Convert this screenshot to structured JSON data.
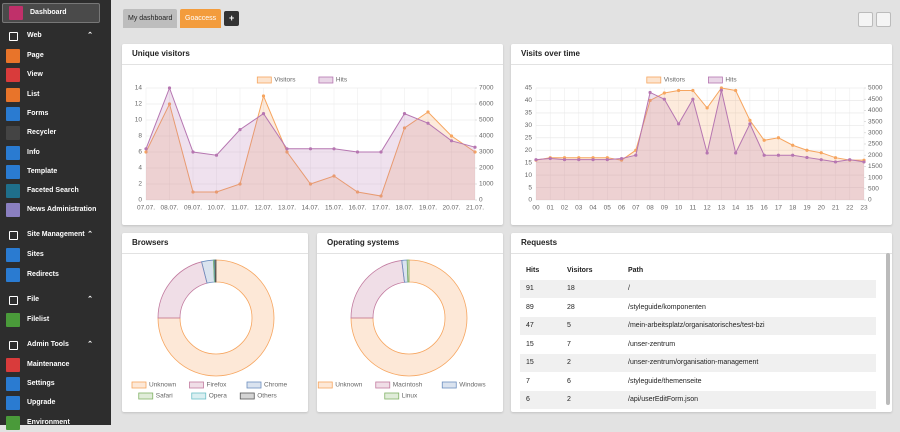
{
  "sidebar": {
    "dashboard": "Dashboard",
    "groups": [
      {
        "label": "Web",
        "items": [
          "Page",
          "View",
          "List",
          "Forms",
          "Recycler",
          "Info",
          "Template",
          "Faceted Search",
          "News Administration"
        ]
      },
      {
        "label": "Site Management",
        "items": [
          "Sites",
          "Redirects"
        ]
      },
      {
        "label": "File",
        "items": [
          "Filelist"
        ]
      },
      {
        "label": "Admin Tools",
        "items": [
          "Maintenance",
          "Settings",
          "Upgrade",
          "Environment"
        ]
      }
    ]
  },
  "tabs": [
    {
      "label": "My dashboard",
      "active": false
    },
    {
      "label": "Goaccess",
      "active": true
    }
  ],
  "add_button": "+",
  "widgets": {
    "unique_visitors": {
      "title": "Unique visitors",
      "chart": {
        "type": "line",
        "categories": [
          "07.07.",
          "08.07.",
          "09.07.",
          "10.07.",
          "11.07.",
          "12.07.",
          "13.07.",
          "14.07.",
          "15.07.",
          "16.07.",
          "17.07.",
          "18.07.",
          "19.07.",
          "20.07.",
          "21.07."
        ],
        "series": [
          {
            "name": "Visitors",
            "color": "#f6a55f",
            "values": [
              6,
              12,
              1,
              1,
              2,
              13,
              6,
              2,
              3,
              1,
              0.5,
              9,
              11,
              8,
              6
            ]
          },
          {
            "name": "Hits",
            "color": "#b676b1",
            "axis": "y2",
            "values": [
              3200,
              7000,
              3000,
              2800,
              4400,
              5400,
              3200,
              3200,
              3200,
              3000,
              3000,
              5400,
              4800,
              3700,
              3300
            ]
          }
        ],
        "ylim": [
          0,
          14
        ],
        "yticks": [
          0,
          2,
          4,
          6,
          8,
          10,
          12,
          14
        ],
        "y2lim": [
          0,
          7000
        ],
        "y2ticks": [
          0,
          1000,
          2000,
          3000,
          4000,
          5000,
          6000,
          7000
        ],
        "grid": true
      }
    },
    "visits_over_time": {
      "title": "Visits over time",
      "chart": {
        "type": "line",
        "categories": [
          "00",
          "01",
          "02",
          "03",
          "04",
          "05",
          "06",
          "07",
          "08",
          "09",
          "10",
          "11",
          "12",
          "13",
          "14",
          "15",
          "16",
          "17",
          "18",
          "19",
          "20",
          "21",
          "22",
          "23"
        ],
        "series": [
          {
            "name": "Visitors",
            "color": "#f6a55f",
            "values": [
              16,
              17,
              17,
              17,
              17,
              17,
              16,
              20,
              40,
              43,
              44,
              44,
              37,
              45,
              44,
              32,
              24,
              25,
              22,
              20,
              19,
              17,
              16,
              16
            ]
          },
          {
            "name": "Hits",
            "color": "#b676b1",
            "axis": "y2",
            "values": [
              1800,
              1850,
              1800,
              1800,
              1800,
              1800,
              1850,
              2000,
              4800,
              4500,
              3400,
              4500,
              2100,
              4900,
              2100,
              3400,
              2000,
              2000,
              2000,
              1900,
              1800,
              1700,
              1800,
              1700
            ]
          }
        ],
        "ylim": [
          0,
          45
        ],
        "yticks": [
          0,
          5,
          10,
          15,
          20,
          25,
          30,
          35,
          40,
          45
        ],
        "y2lim": [
          0,
          5000
        ],
        "y2ticks": [
          0,
          500,
          1000,
          1500,
          2000,
          2500,
          3000,
          3500,
          4000,
          4500,
          5000
        ],
        "grid": true
      }
    },
    "browsers": {
      "title": "Browsers",
      "chart": {
        "type": "donut",
        "categories": [
          "Unknown",
          "Firefox",
          "Chrome",
          "Safari",
          "Opera",
          "Others"
        ],
        "values": [
          75,
          21,
          3.3,
          0.2,
          0.2,
          0.3
        ],
        "colors": [
          "#f6a55f",
          "#c27ba0",
          "#6c8ebf",
          "#82b366",
          "#6cc0c8",
          "#555555"
        ]
      }
    },
    "operating_systems": {
      "title": "Operating systems",
      "chart": {
        "type": "donut",
        "categories": [
          "Unknown",
          "Macintosh",
          "Windows",
          "Linux"
        ],
        "values": [
          75,
          23,
          1.5,
          0.5
        ],
        "colors": [
          "#f6a55f",
          "#c27ba0",
          "#6c8ebf",
          "#82b366"
        ]
      }
    },
    "requests": {
      "title": "Requests",
      "table": {
        "columns": [
          "Hits",
          "Visitors",
          "Path"
        ],
        "rows": [
          [
            91,
            18,
            "/"
          ],
          [
            89,
            28,
            "/styleguide/komponenten"
          ],
          [
            47,
            5,
            "/mein-arbeitsplatz/organisatorisches/test-bzi"
          ],
          [
            15,
            7,
            "/unser-zentrum"
          ],
          [
            15,
            2,
            "/unser-zentrum/organisation-management"
          ],
          [
            7,
            6,
            "/styleguide/themenseite"
          ],
          [
            6,
            2,
            "/api/userEditForm.json"
          ]
        ]
      }
    }
  }
}
